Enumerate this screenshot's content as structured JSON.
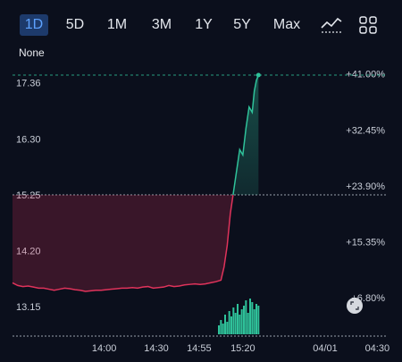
{
  "tabs": {
    "t1d": "1D",
    "t5d": "5D",
    "t1m": "1M",
    "t3m": "3M",
    "t1y": "1Y",
    "t5y": "5Y",
    "tmax": "Max",
    "active": "1D"
  },
  "toolbar": {
    "chart_type_icon": "line-chart-icon",
    "layout_icon": "grid-icon"
  },
  "compare_label": "None",
  "colors": {
    "up": "#2fc29a",
    "down": "#e0335b",
    "accent": "#5ea2ff",
    "background": "#0b0f1c"
  },
  "chart_data": {
    "type": "line",
    "y_ticks": [
      "17.36",
      "16.30",
      "15.25",
      "14.20",
      "13.15"
    ],
    "y_tick_values": [
      17.36,
      16.3,
      15.25,
      14.2,
      13.15
    ],
    "pct_ticks": [
      "+41.00%",
      "+32.45%",
      "+23.90%",
      "+15.35%",
      "+6.80%"
    ],
    "pct_tick_values": [
      17.36,
      16.3,
      15.25,
      14.2,
      13.15
    ],
    "x_ticks": [
      "14:00",
      "14:30",
      "14:55",
      "15:20",
      "04/01",
      "04:30"
    ],
    "x_tick_values": [
      0.88,
      1.38,
      1.79,
      2.21,
      3.0,
      3.5
    ],
    "reference_price": 15.25,
    "ylim": [
      12.6,
      17.6
    ],
    "xlim": [
      0,
      3.6
    ],
    "price_series": {
      "x": [
        0,
        0.05,
        0.1,
        0.15,
        0.2,
        0.25,
        0.3,
        0.35,
        0.4,
        0.45,
        0.5,
        0.55,
        0.6,
        0.65,
        0.7,
        0.75,
        0.8,
        0.85,
        0.9,
        0.95,
        1.0,
        1.05,
        1.1,
        1.15,
        1.2,
        1.25,
        1.3,
        1.35,
        1.4,
        1.45,
        1.5,
        1.55,
        1.6,
        1.65,
        1.7,
        1.75,
        1.8,
        1.85,
        1.9,
        1.95,
        2.0,
        2.03,
        2.06,
        2.09,
        2.12,
        2.15,
        2.18,
        2.21,
        2.24,
        2.27,
        2.3,
        2.32,
        2.34,
        2.36
      ],
      "values": [
        13.6,
        13.55,
        13.53,
        13.54,
        13.52,
        13.5,
        13.5,
        13.48,
        13.46,
        13.48,
        13.5,
        13.49,
        13.47,
        13.46,
        13.44,
        13.45,
        13.46,
        13.46,
        13.47,
        13.48,
        13.49,
        13.5,
        13.5,
        13.51,
        13.5,
        13.52,
        13.53,
        13.5,
        13.51,
        13.52,
        13.55,
        13.53,
        13.54,
        13.56,
        13.57,
        13.58,
        13.57,
        13.58,
        13.6,
        13.62,
        13.65,
        13.9,
        14.3,
        14.9,
        15.3,
        15.7,
        16.1,
        16.0,
        16.5,
        16.9,
        16.8,
        17.2,
        17.4,
        17.5
      ]
    },
    "volume": {
      "x": [
        1.98,
        2.0,
        2.02,
        2.04,
        2.06,
        2.08,
        2.1,
        2.12,
        2.14,
        2.16,
        2.18,
        2.2,
        2.22,
        2.24,
        2.26,
        2.28,
        2.3,
        2.32,
        2.34,
        2.36
      ],
      "values": [
        0.25,
        0.4,
        0.3,
        0.55,
        0.35,
        0.65,
        0.5,
        0.75,
        0.6,
        0.85,
        0.55,
        0.7,
        0.8,
        0.95,
        0.6,
        1.0,
        0.9,
        0.7,
        0.85,
        0.8
      ]
    }
  }
}
